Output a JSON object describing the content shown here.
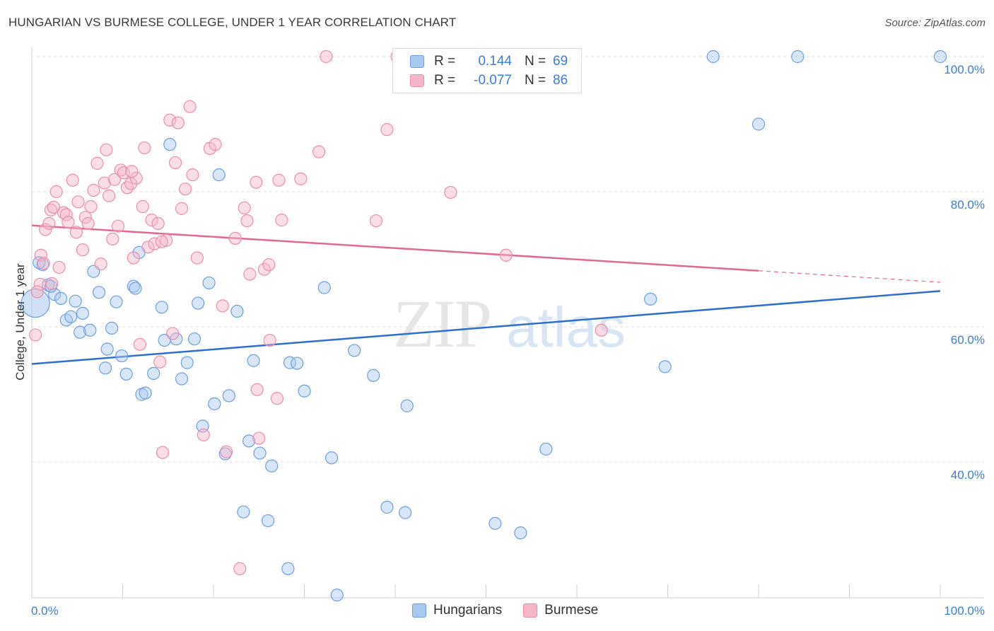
{
  "title": "HUNGARIAN VS BURMESE COLLEGE, UNDER 1 YEAR CORRELATION CHART",
  "source": "Source: ZipAtlas.com",
  "watermark": {
    "zip": "ZIP",
    "atlas": "atlas"
  },
  "legend_top": {
    "rows": [
      {
        "r_label": "R =",
        "r_value": "0.144",
        "n_label": "N =",
        "n_value": "69",
        "color": "#a9c8f0",
        "stroke": "#6d9fe0"
      },
      {
        "r_label": "R =",
        "r_value": "-0.077",
        "n_label": "N =",
        "n_value": "86",
        "color": "#f5b6c8",
        "stroke": "#e890aa"
      }
    ]
  },
  "legend_bottom": [
    {
      "label": "Hungarians",
      "color": "#a9c8f0",
      "stroke": "#6d9fe0"
    },
    {
      "label": "Burmese",
      "color": "#f5b6c8",
      "stroke": "#e890aa"
    }
  ],
  "chart_data": {
    "type": "scatter",
    "title": "HUNGARIAN VS BURMESE COLLEGE, UNDER 1 YEAR CORRELATION CHART",
    "xlabel": "",
    "ylabel": "College, Under 1 year",
    "xlim": [
      0,
      100
    ],
    "ylim": [
      20,
      102
    ],
    "x_ticks": [
      0,
      10,
      20,
      30,
      40,
      50,
      60,
      70,
      80,
      90,
      100
    ],
    "x_tick_labels": [
      {
        "value": 0,
        "label": "0.0%"
      },
      {
        "value": 100,
        "label": "100.0%"
      }
    ],
    "y_ticks": [
      {
        "value": 40,
        "label": "40.0%"
      },
      {
        "value": 60,
        "label": "60.0%"
      },
      {
        "value": 80,
        "label": "80.0%"
      },
      {
        "value": 100,
        "label": "100.0%"
      }
    ],
    "grid": true,
    "series": [
      {
        "name": "Hungarians",
        "color": "#a9c8f0",
        "stroke": "#6d9fe0",
        "trend": {
          "x0": 0,
          "y0": 54.5,
          "x1": 100,
          "y1": 65.3,
          "color": "#2f6fd0"
        },
        "points": [
          [
            0.4,
            63.5
          ],
          [
            1.2,
            69.2
          ],
          [
            1.8,
            66.2
          ],
          [
            2.5,
            64.8
          ],
          [
            3.2,
            64.2
          ],
          [
            3.8,
            61.0
          ],
          [
            4.3,
            61.5
          ],
          [
            4.8,
            63.8
          ],
          [
            5.3,
            59.2
          ],
          [
            5.6,
            62.0
          ],
          [
            6.4,
            59.5
          ],
          [
            6.8,
            68.2
          ],
          [
            7.4,
            65.1
          ],
          [
            8.1,
            53.9
          ],
          [
            8.3,
            56.7
          ],
          [
            8.8,
            59.8
          ],
          [
            9.3,
            63.7
          ],
          [
            9.9,
            55.7
          ],
          [
            10.4,
            53.0
          ],
          [
            11.2,
            66.0
          ],
          [
            11.4,
            65.7
          ],
          [
            11.8,
            71.0
          ],
          [
            12.1,
            50.0
          ],
          [
            12.5,
            50.2
          ],
          [
            13.4,
            53.1
          ],
          [
            14.3,
            62.9
          ],
          [
            14.6,
            58.0
          ],
          [
            15.2,
            87.0
          ],
          [
            15.9,
            58.2
          ],
          [
            16.5,
            52.3
          ],
          [
            17.1,
            54.7
          ],
          [
            17.9,
            58.2
          ],
          [
            18.3,
            63.5
          ],
          [
            18.8,
            45.3
          ],
          [
            19.5,
            66.5
          ],
          [
            20.1,
            48.6
          ],
          [
            20.6,
            82.5
          ],
          [
            21.3,
            41.2
          ],
          [
            21.7,
            49.8
          ],
          [
            22.6,
            62.3
          ],
          [
            23.3,
            32.6
          ],
          [
            23.9,
            43.1
          ],
          [
            24.4,
            55.0
          ],
          [
            25.1,
            41.3
          ],
          [
            26.0,
            31.3
          ],
          [
            26.4,
            39.4
          ],
          [
            28.2,
            24.2
          ],
          [
            28.4,
            54.7
          ],
          [
            29.2,
            54.6
          ],
          [
            30.0,
            50.5
          ],
          [
            32.2,
            65.8
          ],
          [
            33.0,
            40.6
          ],
          [
            33.6,
            20.3
          ],
          [
            35.5,
            56.5
          ],
          [
            37.6,
            52.8
          ],
          [
            39.1,
            33.3
          ],
          [
            41.1,
            32.5
          ],
          [
            41.3,
            48.3
          ],
          [
            51.0,
            30.9
          ],
          [
            53.8,
            29.5
          ],
          [
            56.6,
            41.9
          ],
          [
            68.1,
            64.1
          ],
          [
            69.7,
            54.1
          ],
          [
            75.0,
            100.0
          ],
          [
            80.0,
            90.0
          ],
          [
            84.3,
            100.0
          ],
          [
            100.0,
            100.0
          ],
          [
            0.8,
            69.5
          ],
          [
            2.1,
            66.0
          ]
        ],
        "big_point": [
          0.4,
          63.5
        ]
      },
      {
        "name": "Burmese",
        "color": "#f5b6c8",
        "stroke": "#e890aa",
        "trend": {
          "x0": 0,
          "y0": 75.0,
          "x1": 80,
          "y1": 68.3,
          "dash_to_x": 100,
          "dash_to_y": 66.6,
          "color": "#e06a94"
        },
        "points": [
          [
            0.4,
            58.8
          ],
          [
            0.9,
            66.3
          ],
          [
            1.0,
            70.6
          ],
          [
            1.3,
            69.4
          ],
          [
            1.5,
            74.4
          ],
          [
            1.9,
            75.3
          ],
          [
            2.1,
            77.3
          ],
          [
            2.4,
            77.7
          ],
          [
            2.7,
            80.0
          ],
          [
            3.0,
            68.8
          ],
          [
            3.5,
            76.9
          ],
          [
            3.8,
            76.6
          ],
          [
            4.0,
            75.5
          ],
          [
            4.5,
            81.7
          ],
          [
            4.9,
            74.0
          ],
          [
            5.1,
            78.5
          ],
          [
            5.6,
            71.4
          ],
          [
            5.9,
            76.2
          ],
          [
            6.2,
            75.3
          ],
          [
            6.5,
            77.8
          ],
          [
            6.8,
            80.2
          ],
          [
            7.2,
            84.2
          ],
          [
            7.6,
            69.3
          ],
          [
            8.0,
            81.3
          ],
          [
            8.2,
            86.2
          ],
          [
            8.5,
            79.4
          ],
          [
            8.9,
            73.0
          ],
          [
            9.1,
            81.8
          ],
          [
            9.5,
            74.9
          ],
          [
            9.8,
            83.2
          ],
          [
            10.1,
            82.8
          ],
          [
            10.5,
            80.6
          ],
          [
            10.9,
            81.2
          ],
          [
            11.2,
            70.2
          ],
          [
            11.5,
            82.0
          ],
          [
            11.9,
            57.4
          ],
          [
            12.2,
            77.8
          ],
          [
            12.4,
            86.5
          ],
          [
            12.8,
            71.8
          ],
          [
            13.2,
            75.8
          ],
          [
            13.5,
            72.3
          ],
          [
            13.9,
            75.3
          ],
          [
            14.1,
            54.8
          ],
          [
            14.4,
            41.4
          ],
          [
            14.8,
            72.8
          ],
          [
            15.2,
            90.6
          ],
          [
            15.5,
            59.0
          ],
          [
            15.8,
            84.3
          ],
          [
            16.1,
            90.2
          ],
          [
            16.5,
            77.5
          ],
          [
            16.9,
            80.4
          ],
          [
            17.4,
            92.6
          ],
          [
            17.7,
            82.5
          ],
          [
            18.2,
            70.2
          ],
          [
            18.9,
            44.0
          ],
          [
            19.6,
            86.4
          ],
          [
            20.2,
            87.0
          ],
          [
            21.0,
            63.1
          ],
          [
            21.4,
            41.5
          ],
          [
            22.4,
            73.1
          ],
          [
            22.9,
            24.2
          ],
          [
            23.4,
            77.6
          ],
          [
            23.7,
            75.7
          ],
          [
            24.0,
            67.8
          ],
          [
            24.7,
            81.4
          ],
          [
            24.8,
            50.7
          ],
          [
            25.0,
            43.5
          ],
          [
            25.6,
            68.5
          ],
          [
            26.1,
            69.2
          ],
          [
            26.2,
            58.0
          ],
          [
            27.0,
            49.4
          ],
          [
            27.2,
            81.7
          ],
          [
            27.5,
            75.8
          ],
          [
            29.6,
            81.9
          ],
          [
            31.6,
            85.9
          ],
          [
            32.4,
            100.0
          ],
          [
            37.9,
            75.7
          ],
          [
            39.1,
            89.2
          ],
          [
            40.2,
            100.0
          ],
          [
            46.1,
            79.9
          ],
          [
            52.2,
            70.6
          ],
          [
            62.7,
            59.5
          ],
          [
            0.6,
            65.2
          ],
          [
            2.2,
            66.4
          ],
          [
            14.3,
            72.6
          ],
          [
            11.0,
            83.0
          ]
        ]
      }
    ]
  }
}
